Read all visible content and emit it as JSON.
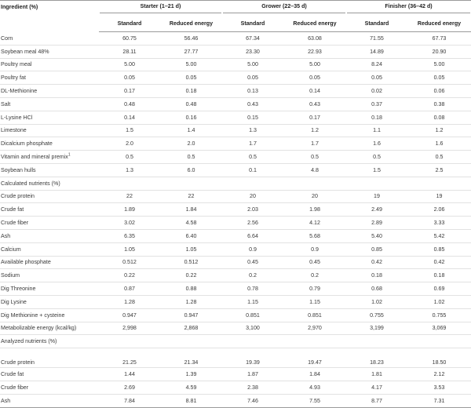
{
  "header": {
    "ingredient": "Ingredient (%)",
    "groups": [
      "Starter (1–21 d)",
      "Grower (22–35 d)",
      "Finisher (36–42 d)"
    ],
    "subheaders": [
      "Standard",
      "Reduced energy",
      "Standard",
      "Reduced energy",
      "Standard",
      "Reduced energy"
    ]
  },
  "rows": [
    {
      "label": "Corn",
      "values": [
        "60.75",
        "56.46",
        "67.34",
        "63.08",
        "71.55",
        "67.73"
      ]
    },
    {
      "label": "Soybean meal 48%",
      "values": [
        "28.11",
        "27.77",
        "23.30",
        "22.93",
        "14.89",
        "20.90"
      ]
    },
    {
      "label": "Poultry meal",
      "values": [
        "5.00",
        "5.00",
        "5.00",
        "5.00",
        "8.24",
        "5.00"
      ]
    },
    {
      "label": "Poultry fat",
      "values": [
        "0.05",
        "0.05",
        "0.05",
        "0.05",
        "0.05",
        "0.05"
      ]
    },
    {
      "label": "DL-Methionine",
      "values": [
        "0.17",
        "0.18",
        "0.13",
        "0.14",
        "0.02",
        "0.06"
      ]
    },
    {
      "label": "Salt",
      "values": [
        "0.48",
        "0.48",
        "0.43",
        "0.43",
        "0.37",
        "0.38"
      ]
    },
    {
      "label": "L-Lysine HCl",
      "values": [
        "0.14",
        "0.16",
        "0.15",
        "0.17",
        "0.18",
        "0.08"
      ]
    },
    {
      "label": "Limestone",
      "values": [
        "1.5",
        "1.4",
        "1.3",
        "1.2",
        "1.1",
        "1.2"
      ]
    },
    {
      "label": "Dicalcium phosphate",
      "values": [
        "2.0",
        "2.0",
        "1.7",
        "1.7",
        "1.6",
        "1.6"
      ]
    },
    {
      "label": "Vitamin and mineral premix",
      "sup": "1",
      "values": [
        "0.5",
        "0.5",
        "0.5",
        "0.5",
        "0.5",
        "0.5"
      ]
    },
    {
      "label": "Soybean hulls",
      "values": [
        "1.3",
        "6.0",
        "0.1",
        "4.8",
        "1.5",
        "2.5"
      ]
    },
    {
      "label": "Calculated nutrients (%)",
      "section": true,
      "values": [
        "",
        "",
        "",
        "",
        "",
        ""
      ]
    },
    {
      "label": "Crude protein",
      "values": [
        "22",
        "22",
        "20",
        "20",
        "19",
        "19"
      ]
    },
    {
      "label": "Crude fat",
      "values": [
        "1.89",
        "1.84",
        "2.03",
        "1.98",
        "2.49",
        "2.06"
      ]
    },
    {
      "label": "Crude fiber",
      "values": [
        "3.02",
        "4.58",
        "2.56",
        "4.12",
        "2.89",
        "3.33"
      ]
    },
    {
      "label": "Ash",
      "values": [
        "6.35",
        "6.40",
        "6.64",
        "5.68",
        "5.40",
        "5.42"
      ]
    },
    {
      "label": "Calcium",
      "values": [
        "1.05",
        "1.05",
        "0.9",
        "0.9",
        "0.85",
        "0.85"
      ]
    },
    {
      "label": "Available phosphate",
      "values": [
        "0.512",
        "0.512",
        "0.45",
        "0.45",
        "0.42",
        "0.42"
      ]
    },
    {
      "label": "Sodium",
      "values": [
        "0.22",
        "0.22",
        "0.2",
        "0.2",
        "0.18",
        "0.18"
      ]
    },
    {
      "label": "Dig Threonine",
      "values": [
        "0.87",
        "0.88",
        "0.78",
        "0.79",
        "0.68",
        "0.69"
      ]
    },
    {
      "label": "Dig Lysine",
      "values": [
        "1.28",
        "1.28",
        "1.15",
        "1.15",
        "1.02",
        "1.02"
      ]
    },
    {
      "label": "Dig Methionine + cysteine",
      "values": [
        "0.947",
        "0.947",
        "0.851",
        "0.851",
        "0.755",
        "0.755"
      ]
    },
    {
      "label": "Metabolizable energy (kcal/kg)",
      "values": [
        "2,998",
        "2,868",
        "3,100",
        "2,970",
        "3,199",
        "3,069"
      ]
    },
    {
      "label": "Analyzed nutrients (%)",
      "section": true,
      "values": [
        "",
        "",
        "",
        "",
        "",
        ""
      ]
    },
    {
      "label": "Crude protein",
      "gap": true,
      "values": [
        "21.25",
        "21.34",
        "19.39",
        "19.47",
        "18.23",
        "18.50"
      ]
    },
    {
      "label": "Crude fat",
      "values": [
        "1.44",
        "1.39",
        "1.87",
        "1.84",
        "1.81",
        "2.12"
      ]
    },
    {
      "label": "Crude fiber",
      "values": [
        "2.69",
        "4.59",
        "2.38",
        "4.93",
        "4.17",
        "3.53"
      ]
    },
    {
      "label": "Ash",
      "values": [
        "7.84",
        "8.81",
        "7.46",
        "7.55",
        "8.77",
        "7.31"
      ]
    }
  ]
}
